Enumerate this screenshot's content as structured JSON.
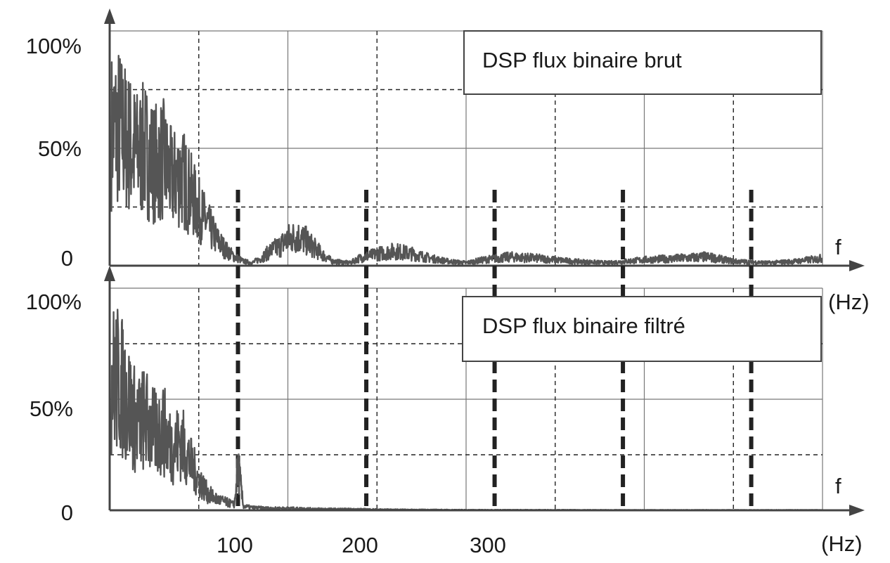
{
  "chart_data": [
    {
      "type": "line",
      "title": "DSP flux binaire brut",
      "xlabel": "f",
      "xunit": "(Hz)",
      "ylabel": "",
      "xlim": [
        0,
        400
      ],
      "ylim": [
        0,
        100
      ],
      "yticks": [
        {
          "value": 0,
          "label": "0"
        },
        {
          "value": 50,
          "label": "50%"
        },
        {
          "value": 100,
          "label": "100%"
        }
      ],
      "legend_position": "top-right",
      "grid": true,
      "color": "#555555",
      "envelope": [
        {
          "x": 1,
          "y": 92
        },
        {
          "x": 5,
          "y": 95
        },
        {
          "x": 10,
          "y": 85
        },
        {
          "x": 15,
          "y": 76
        },
        {
          "x": 20,
          "y": 79
        },
        {
          "x": 25,
          "y": 70
        },
        {
          "x": 30,
          "y": 72
        },
        {
          "x": 35,
          "y": 58
        },
        {
          "x": 40,
          "y": 62
        },
        {
          "x": 45,
          "y": 50
        },
        {
          "x": 50,
          "y": 38
        },
        {
          "x": 55,
          "y": 28
        },
        {
          "x": 60,
          "y": 18
        },
        {
          "x": 65,
          "y": 11
        },
        {
          "x": 70,
          "y": 6
        },
        {
          "x": 75,
          "y": 3
        },
        {
          "x": 80,
          "y": 2
        },
        {
          "x": 85,
          "y": 5
        },
        {
          "x": 90,
          "y": 10
        },
        {
          "x": 95,
          "y": 13
        },
        {
          "x": 100,
          "y": 18
        },
        {
          "x": 105,
          "y": 20
        },
        {
          "x": 110,
          "y": 17
        },
        {
          "x": 115,
          "y": 12
        },
        {
          "x": 120,
          "y": 7
        },
        {
          "x": 125,
          "y": 3
        },
        {
          "x": 135,
          "y": 2
        },
        {
          "x": 140,
          "y": 5
        },
        {
          "x": 150,
          "y": 8
        },
        {
          "x": 160,
          "y": 10
        },
        {
          "x": 170,
          "y": 8
        },
        {
          "x": 180,
          "y": 5
        },
        {
          "x": 190,
          "y": 3
        },
        {
          "x": 200,
          "y": 2
        },
        {
          "x": 210,
          "y": 4
        },
        {
          "x": 225,
          "y": 6
        },
        {
          "x": 240,
          "y": 5
        },
        {
          "x": 260,
          "y": 3
        },
        {
          "x": 280,
          "y": 2
        },
        {
          "x": 300,
          "y": 4
        },
        {
          "x": 320,
          "y": 5
        },
        {
          "x": 335,
          "y": 6
        },
        {
          "x": 350,
          "y": 3
        },
        {
          "x": 370,
          "y": 2
        },
        {
          "x": 385,
          "y": 3
        },
        {
          "x": 400,
          "y": 5
        }
      ]
    },
    {
      "type": "line",
      "title": "DSP flux binaire filtré",
      "xlabel": "f",
      "xunit": "(Hz)",
      "ylabel": "",
      "xlim": [
        0,
        400
      ],
      "ylim": [
        0,
        100
      ],
      "xticks": [
        {
          "value": 100,
          "label": "100"
        },
        {
          "value": 200,
          "label": "200"
        },
        {
          "value": 300,
          "label": "300"
        }
      ],
      "yticks": [
        {
          "value": 0,
          "label": "0"
        },
        {
          "value": 50,
          "label": "50%"
        },
        {
          "value": 100,
          "label": "100%"
        }
      ],
      "legend_position": "top-right",
      "grid": true,
      "color": "#555555",
      "envelope": [
        {
          "x": 1,
          "y": 95
        },
        {
          "x": 5,
          "y": 93
        },
        {
          "x": 10,
          "y": 80
        },
        {
          "x": 15,
          "y": 62
        },
        {
          "x": 20,
          "y": 66
        },
        {
          "x": 25,
          "y": 55
        },
        {
          "x": 30,
          "y": 58
        },
        {
          "x": 35,
          "y": 45
        },
        {
          "x": 40,
          "y": 50
        },
        {
          "x": 45,
          "y": 35
        },
        {
          "x": 50,
          "y": 22
        },
        {
          "x": 55,
          "y": 12
        },
        {
          "x": 60,
          "y": 8
        },
        {
          "x": 65,
          "y": 6
        },
        {
          "x": 70,
          "y": 4
        },
        {
          "x": 72,
          "y": 32
        },
        {
          "x": 75,
          "y": 3
        },
        {
          "x": 80,
          "y": 2
        },
        {
          "x": 90,
          "y": 1.5
        },
        {
          "x": 100,
          "y": 1.5
        },
        {
          "x": 120,
          "y": 1
        },
        {
          "x": 140,
          "y": 0.8
        },
        {
          "x": 160,
          "y": 0.5
        },
        {
          "x": 200,
          "y": 0.3
        },
        {
          "x": 300,
          "y": 0.2
        },
        {
          "x": 400,
          "y": 0.2
        }
      ]
    }
  ],
  "colors": {
    "signal": "#555555",
    "axis": "#444444",
    "grid": "#777777",
    "dashed": "#222222"
  }
}
